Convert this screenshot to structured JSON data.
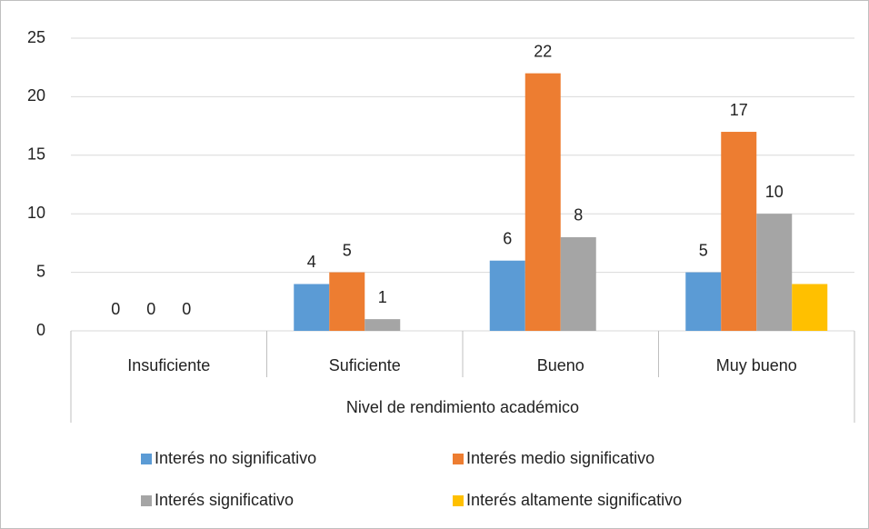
{
  "chart_data": {
    "type": "bar",
    "x_label": "Nivel de rendimiento académico",
    "categories": [
      "Insuficiente",
      "Suficiente",
      "Bueno",
      "Muy bueno"
    ],
    "series": [
      {
        "name": "Interés no significativo",
        "color": "#5b9bd5",
        "values": [
          0,
          4,
          6,
          5
        ],
        "data_labels": true
      },
      {
        "name": "Interés medio significativo",
        "color": "#ed7d31",
        "values": [
          0,
          5,
          22,
          17
        ],
        "data_labels": true
      },
      {
        "name": "Interés significativo",
        "color": "#a5a5a5",
        "values": [
          0,
          1,
          8,
          10
        ],
        "data_labels": true
      },
      {
        "name": "Interés altamente significativo",
        "color": "#ffc000",
        "values": [
          null,
          null,
          null,
          4
        ],
        "data_labels": false
      }
    ],
    "ylim": [
      0,
      25
    ],
    "yticks": [
      0,
      5,
      10,
      15,
      20,
      25
    ],
    "grid": true,
    "legend": "bottom"
  }
}
